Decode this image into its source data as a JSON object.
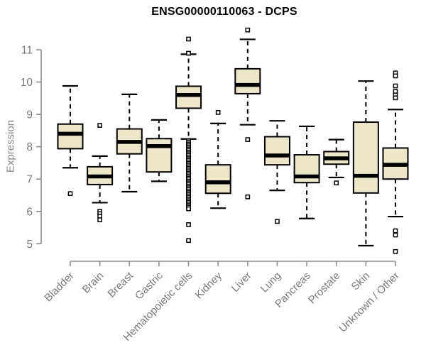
{
  "chart_data": {
    "type": "boxplot",
    "title": "ENSG00000110063 - DCPS",
    "ylabel": "Expression",
    "xlabel": "",
    "ylim": [
      5,
      11
    ],
    "yticks": [
      5,
      6,
      7,
      8,
      9,
      10,
      11
    ],
    "grid": false,
    "legend": "none",
    "colors": {
      "box_fill": "#ede6c8",
      "box_border": "#000000",
      "median": "#000000",
      "whisker": "#000000",
      "outlier_border": "#000000",
      "outlier_fill": "#ffffff",
      "axis_line": "#8c8c8c",
      "tick_label": "#7a7a7a",
      "title": "#000000"
    },
    "categories": [
      "Bladder",
      "Brain",
      "Breast",
      "Gastric",
      "Hematopoietic cells",
      "Kidney",
      "Liver",
      "Lung",
      "Pancreas",
      "Prostate",
      "Skin",
      "Unknown / Other"
    ],
    "series": [
      {
        "name": "Bladder",
        "whisker_low": 7.35,
        "q1": 7.94,
        "median": 8.4,
        "q3": 8.7,
        "whisker_high": 9.88,
        "outliers": [
          6.55
        ]
      },
      {
        "name": "Brain",
        "whisker_low": 6.27,
        "q1": 6.83,
        "median": 7.08,
        "q3": 7.38,
        "whisker_high": 7.71,
        "outliers": [
          8.66,
          6.0,
          5.93,
          5.85,
          5.74
        ]
      },
      {
        "name": "Breast",
        "whisker_low": 6.61,
        "q1": 7.78,
        "median": 8.15,
        "q3": 8.55,
        "whisker_high": 9.62,
        "outliers": []
      },
      {
        "name": "Gastric",
        "whisker_low": 6.93,
        "q1": 7.22,
        "median": 8.02,
        "q3": 8.25,
        "whisker_high": 8.83,
        "outliers": []
      },
      {
        "name": "Hematopoietic cells",
        "whisker_low": 8.24,
        "q1": 9.19,
        "median": 9.6,
        "q3": 9.87,
        "whisker_high": 10.86,
        "outliers": [
          11.33,
          10.89,
          8.18,
          8.13,
          8.08,
          8.03,
          7.98,
          7.93,
          7.88,
          7.83,
          7.78,
          7.73,
          7.68,
          7.63,
          7.58,
          7.53,
          7.48,
          7.43,
          7.38,
          7.33,
          7.28,
          7.23,
          7.18,
          7.13,
          7.08,
          7.03,
          6.98,
          6.93,
          6.88,
          6.83,
          6.78,
          6.73,
          6.68,
          6.63,
          6.58,
          6.53,
          6.48,
          6.43,
          6.38,
          6.33,
          6.28,
          6.23,
          6.18,
          6.13,
          6.08,
          5.59,
          5.1
        ]
      },
      {
        "name": "Kidney",
        "whisker_low": 6.1,
        "q1": 6.56,
        "median": 6.9,
        "q3": 7.44,
        "whisker_high": 8.72,
        "outliers": [
          9.06
        ]
      },
      {
        "name": "Liver",
        "whisker_low": 8.68,
        "q1": 9.64,
        "median": 9.91,
        "q3": 10.41,
        "whisker_high": 11.32,
        "outliers": [
          11.61,
          8.22,
          6.45
        ]
      },
      {
        "name": "Lung",
        "whisker_low": 6.65,
        "q1": 7.44,
        "median": 7.73,
        "q3": 8.31,
        "whisker_high": 8.8,
        "outliers": [
          5.69
        ]
      },
      {
        "name": "Pancreas",
        "whisker_low": 5.78,
        "q1": 6.89,
        "median": 7.08,
        "q3": 7.75,
        "whisker_high": 8.63,
        "outliers": []
      },
      {
        "name": "Prostate",
        "whisker_low": 7.05,
        "q1": 7.46,
        "median": 7.64,
        "q3": 7.85,
        "whisker_high": 8.22,
        "outliers": [
          6.88
        ]
      },
      {
        "name": "Skin",
        "whisker_low": 4.94,
        "q1": 6.57,
        "median": 7.1,
        "q3": 8.76,
        "whisker_high": 10.03,
        "outliers": []
      },
      {
        "name": "Unknown / Other",
        "whisker_low": 5.84,
        "q1": 7.0,
        "median": 7.44,
        "q3": 7.96,
        "whisker_high": 9.15,
        "outliers": [
          10.28,
          10.19,
          9.88,
          9.71,
          9.6,
          9.51,
          5.4,
          5.27,
          4.76
        ]
      }
    ]
  }
}
